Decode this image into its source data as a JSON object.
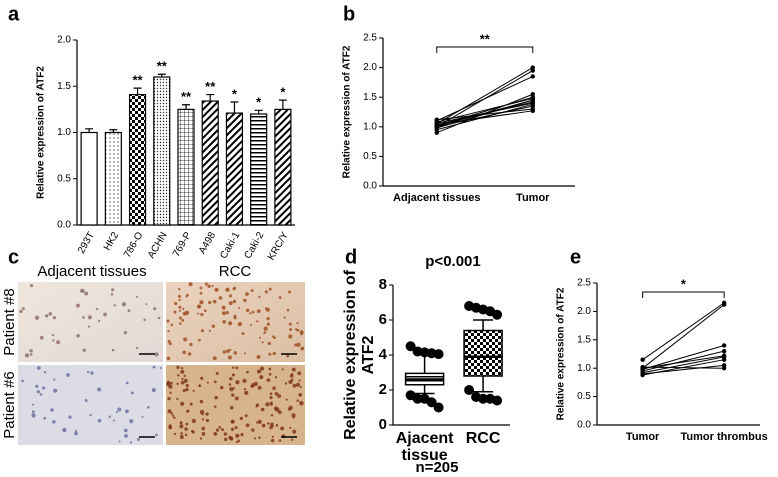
{
  "chart_data": [
    {
      "panel": "a",
      "type": "bar",
      "ylabel": "Relative expression of ATF2",
      "categories": [
        "293T",
        "HK2",
        "786-O",
        "ACHN",
        "769-P",
        "A498",
        "Caki-1",
        "Caki-2",
        "KRC/Y"
      ],
      "values": [
        1.0,
        1.0,
        1.41,
        1.6,
        1.25,
        1.34,
        1.21,
        1.2,
        1.25
      ],
      "errors": [
        0.04,
        0.03,
        0.07,
        0.03,
        0.05,
        0.07,
        0.12,
        0.04,
        0.1
      ],
      "patterns": [
        "none",
        "dots",
        "checker",
        "dense-dots",
        "grid",
        "diagonal",
        "diagonal",
        "hstripes",
        "diagonal"
      ],
      "annotations": [
        null,
        null,
        "**",
        "**",
        "**",
        "**",
        "*",
        "*",
        "*"
      ],
      "ylim": [
        0,
        2
      ],
      "yticks": [
        {
          "value": 0,
          "label": "0.0"
        },
        0.5,
        {
          "value": 1,
          "label": "1.0"
        },
        1.5,
        {
          "value": 2,
          "label": "2.0"
        }
      ]
    },
    {
      "panel": "b",
      "type": "paired",
      "ylabel": "Relative expression of ATF2",
      "categories": [
        "Adjacent tissues",
        "Tumor"
      ],
      "bracket": "**",
      "series": [
        {
          "values": [
            1.05,
            2.0
          ]
        },
        {
          "values": [
            1.0,
            1.95
          ]
        },
        {
          "values": [
            1.1,
            1.85
          ]
        },
        {
          "values": [
            0.9,
            1.55
          ]
        },
        {
          "values": [
            1.02,
            1.5
          ]
        },
        {
          "values": [
            1.08,
            1.48
          ]
        },
        {
          "values": [
            0.98,
            1.45
          ]
        },
        {
          "values": [
            1.03,
            1.42
          ]
        },
        {
          "values": [
            1.06,
            1.4
          ]
        },
        {
          "values": [
            0.95,
            1.38
          ]
        },
        {
          "values": [
            1.0,
            1.35
          ]
        },
        {
          "values": [
            1.12,
            1.3
          ]
        },
        {
          "values": [
            1.04,
            1.27
          ]
        },
        {
          "values": [
            1.01,
            1.45
          ]
        }
      ],
      "ylim": [
        0,
        2.5
      ],
      "yticks": [
        {
          "value": 0,
          "label": "0.0"
        },
        0.5,
        {
          "value": 1,
          "label": "1.0"
        },
        1.5,
        {
          "value": 2,
          "label": "2.0"
        },
        2.5
      ]
    },
    {
      "panel": "d",
      "type": "box",
      "title": "p<0.001",
      "note": "n=205",
      "ylabel": [
        [
          "Relative expression of"
        ],
        [
          "ATF2"
        ]
      ],
      "categories": [
        [
          "Ajacent",
          "tissue"
        ],
        [
          "RCC"
        ]
      ],
      "patterns": [
        "hstripes",
        "checker"
      ],
      "boxes": [
        {
          "whisker_low": 1.8,
          "q1": 2.3,
          "median": 2.6,
          "q3": 2.95,
          "whisker_high": 4.1,
          "points": [
            4.5,
            4.2,
            4.15,
            4.1,
            4.05,
            1.7,
            1.5,
            1.5,
            1.3,
            1.0
          ]
        },
        {
          "whisker_low": 1.9,
          "q1": 2.8,
          "median": 3.9,
          "q3": 5.4,
          "whisker_high": 6.0,
          "points": [
            6.8,
            6.7,
            6.6,
            6.5,
            6.3,
            2.0,
            1.6,
            1.5,
            1.5,
            1.4
          ]
        }
      ],
      "ylim": [
        0,
        8
      ],
      "yticks": [
        0,
        2,
        4,
        6,
        8
      ]
    },
    {
      "panel": "e",
      "type": "paired",
      "ylabel": "Relative expression of ATF2",
      "categories": [
        "Tumor",
        "Tumor thrombus"
      ],
      "bracket": "*",
      "series": [
        {
          "values": [
            1.15,
            2.15
          ]
        },
        {
          "values": [
            1.0,
            2.12
          ]
        },
        {
          "values": [
            0.98,
            1.4
          ]
        },
        {
          "values": [
            0.95,
            1.3
          ]
        },
        {
          "values": [
            1.0,
            1.22
          ]
        },
        {
          "values": [
            0.92,
            1.2
          ]
        },
        {
          "values": [
            0.88,
            1.15
          ]
        },
        {
          "values": [
            0.9,
            1.05
          ]
        },
        {
          "values": [
            1.02,
            1.0
          ]
        }
      ],
      "ylim": [
        0,
        2.5
      ],
      "yticks": [
        {
          "value": 0,
          "label": "0.0"
        },
        0.5,
        {
          "value": 1,
          "label": "1.0"
        },
        1.5,
        {
          "value": 2,
          "label": "2.0"
        },
        2.5
      ]
    }
  ],
  "image_panel": {
    "panel": "c",
    "columns": [
      "Adjacent tissues",
      "RCC"
    ],
    "rows": [
      "Patient #8",
      "Patient #6"
    ]
  }
}
